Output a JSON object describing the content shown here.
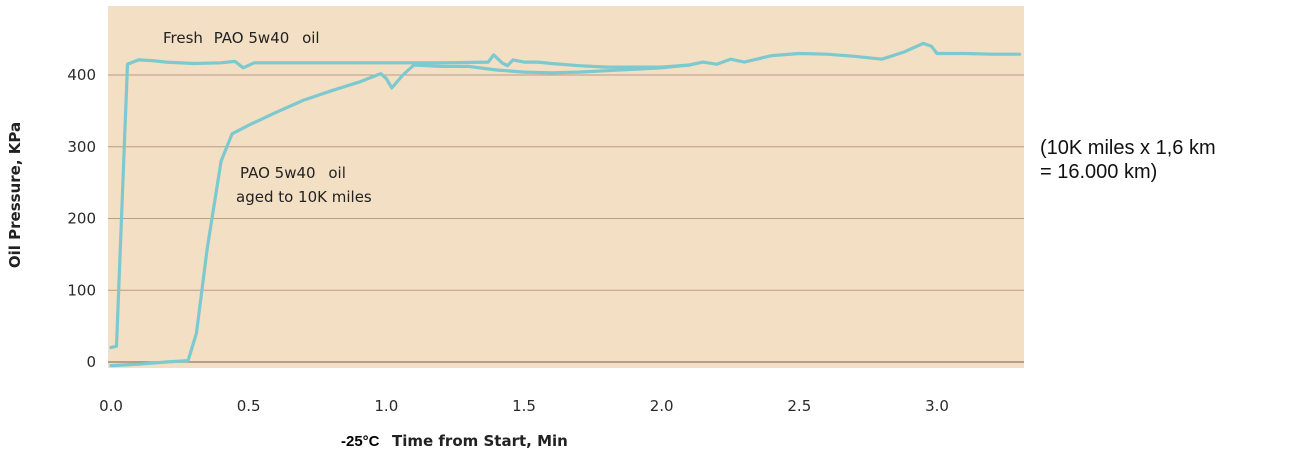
{
  "chart_data": {
    "type": "line",
    "title": "",
    "xlabel": "Time from Start, Min",
    "xlabel_prefix": "-25°C",
    "ylabel": "Oil Pressure, KPa",
    "xlim": [
      0.0,
      3.3
    ],
    "ylim": [
      -10,
      520
    ],
    "x_ticks": [
      "0.0",
      "0.5",
      "1.0",
      "1.5",
      "2.0",
      "2.5",
      "3.0"
    ],
    "y_ticks": [
      "0",
      "100",
      "200",
      "300",
      "400"
    ],
    "grid": true,
    "legend": "none",
    "background_color": "#f3dfc4",
    "line_color": "#7cc9cf",
    "series": [
      {
        "name": "Fresh PAO 5w40 oil",
        "points": [
          [
            0.0,
            20
          ],
          [
            0.02,
            22
          ],
          [
            0.06,
            415
          ],
          [
            0.1,
            421
          ],
          [
            0.15,
            420
          ],
          [
            0.2,
            418
          ],
          [
            0.3,
            416
          ],
          [
            0.4,
            417
          ],
          [
            0.45,
            419
          ],
          [
            0.48,
            410
          ],
          [
            0.52,
            417
          ],
          [
            0.6,
            417
          ],
          [
            0.8,
            417
          ],
          [
            1.0,
            417
          ],
          [
            1.2,
            417
          ],
          [
            1.37,
            418
          ],
          [
            1.39,
            428
          ],
          [
            1.42,
            417
          ],
          [
            1.44,
            413
          ],
          [
            1.46,
            421
          ],
          [
            1.5,
            418
          ],
          [
            1.55,
            418
          ],
          [
            1.6,
            416
          ],
          [
            1.7,
            413
          ],
          [
            1.8,
            411
          ],
          [
            1.9,
            411
          ],
          [
            2.0,
            411
          ],
          [
            2.1,
            414
          ],
          [
            2.15,
            418
          ],
          [
            2.2,
            415
          ],
          [
            2.25,
            422
          ],
          [
            2.3,
            418
          ],
          [
            2.4,
            427
          ],
          [
            2.5,
            430
          ],
          [
            2.6,
            429
          ],
          [
            2.7,
            426
          ],
          [
            2.8,
            422
          ],
          [
            2.88,
            432
          ],
          [
            2.95,
            444
          ],
          [
            2.98,
            440
          ],
          [
            3.0,
            430
          ],
          [
            3.1,
            430
          ],
          [
            3.2,
            429
          ],
          [
            3.3,
            429
          ]
        ]
      },
      {
        "name": "PAO 5w40 oil aged to 10K miles",
        "points": [
          [
            0.0,
            -5
          ],
          [
            0.1,
            -3
          ],
          [
            0.2,
            0
          ],
          [
            0.28,
            2
          ],
          [
            0.31,
            40
          ],
          [
            0.35,
            160
          ],
          [
            0.4,
            280
          ],
          [
            0.44,
            318
          ],
          [
            0.5,
            330
          ],
          [
            0.6,
            348
          ],
          [
            0.7,
            365
          ],
          [
            0.8,
            378
          ],
          [
            0.9,
            390
          ],
          [
            0.98,
            402
          ],
          [
            1.0,
            395
          ],
          [
            1.02,
            382
          ],
          [
            1.06,
            400
          ],
          [
            1.1,
            414
          ],
          [
            1.2,
            412
          ],
          [
            1.3,
            412
          ],
          [
            1.4,
            407
          ],
          [
            1.5,
            404
          ],
          [
            1.6,
            403
          ],
          [
            1.7,
            404
          ],
          [
            1.8,
            406
          ],
          [
            1.9,
            408
          ],
          [
            2.0,
            410
          ],
          [
            2.1,
            414
          ]
        ]
      }
    ],
    "annotations": [
      {
        "segments": [
          "Fresh",
          "PAO 5w40",
          "oil"
        ]
      },
      {
        "lines": [
          [
            "PAO 5w40",
            "oil"
          ],
          [
            "aged to 10K miles"
          ]
        ]
      }
    ],
    "side_note": [
      "(10K miles x 1,6 km",
      "= 16.000 km)"
    ]
  }
}
